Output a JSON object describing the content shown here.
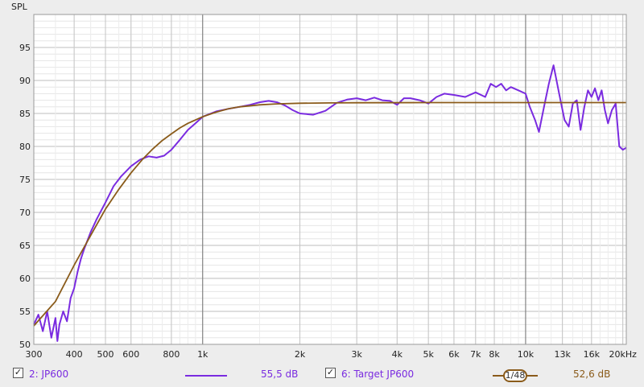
{
  "chart_data": {
    "type": "line",
    "ylabel": "SPL",
    "xscale": "log",
    "xlim": [
      300,
      20500
    ],
    "ylim": [
      50,
      100
    ],
    "yticks": [
      50,
      55,
      60,
      65,
      70,
      75,
      80,
      85,
      90,
      95
    ],
    "xticks": [
      {
        "v": 300,
        "label": "300"
      },
      {
        "v": 400,
        "label": "400"
      },
      {
        "v": 500,
        "label": "500"
      },
      {
        "v": 600,
        "label": "600"
      },
      {
        "v": 800,
        "label": "800"
      },
      {
        "v": 1000,
        "label": "1k"
      },
      {
        "v": 2000,
        "label": "2k"
      },
      {
        "v": 3000,
        "label": "3k"
      },
      {
        "v": 4000,
        "label": "4k"
      },
      {
        "v": 5000,
        "label": "5k"
      },
      {
        "v": 6000,
        "label": "6k"
      },
      {
        "v": 7000,
        "label": "7k"
      },
      {
        "v": 8000,
        "label": "8k"
      },
      {
        "v": 10000,
        "label": "10k"
      },
      {
        "v": 13000,
        "label": "13k"
      },
      {
        "v": 16000,
        "label": "16k"
      },
      {
        "v": 20000,
        "label": "20kHz"
      }
    ],
    "grid": true,
    "series": [
      {
        "name": "2: JP600",
        "color": "#7a2be0",
        "points": [
          [
            300,
            53
          ],
          [
            310,
            54.5
          ],
          [
            320,
            52
          ],
          [
            330,
            55
          ],
          [
            340,
            51
          ],
          [
            350,
            54
          ],
          [
            355,
            50.5
          ],
          [
            360,
            53
          ],
          [
            370,
            55
          ],
          [
            380,
            53.5
          ],
          [
            390,
            57
          ],
          [
            400,
            58.5
          ],
          [
            410,
            61
          ],
          [
            420,
            63
          ],
          [
            430,
            64.5
          ],
          [
            450,
            67
          ],
          [
            470,
            69
          ],
          [
            500,
            71.5
          ],
          [
            530,
            74
          ],
          [
            560,
            75.5
          ],
          [
            600,
            77
          ],
          [
            640,
            78
          ],
          [
            680,
            78.5
          ],
          [
            720,
            78.3
          ],
          [
            760,
            78.6
          ],
          [
            800,
            79.5
          ],
          [
            850,
            81
          ],
          [
            900,
            82.5
          ],
          [
            950,
            83.5
          ],
          [
            1000,
            84.5
          ],
          [
            1100,
            85.3
          ],
          [
            1200,
            85.7
          ],
          [
            1300,
            86
          ],
          [
            1400,
            86.3
          ],
          [
            1500,
            86.7
          ],
          [
            1600,
            86.9
          ],
          [
            1700,
            86.7
          ],
          [
            1800,
            86.2
          ],
          [
            1900,
            85.5
          ],
          [
            2000,
            85
          ],
          [
            2200,
            84.8
          ],
          [
            2400,
            85.4
          ],
          [
            2600,
            86.6
          ],
          [
            2800,
            87.1
          ],
          [
            3000,
            87.3
          ],
          [
            3200,
            87
          ],
          [
            3400,
            87.4
          ],
          [
            3600,
            87
          ],
          [
            3800,
            86.9
          ],
          [
            4000,
            86.3
          ],
          [
            4200,
            87.3
          ],
          [
            4400,
            87.3
          ],
          [
            4700,
            87
          ],
          [
            5000,
            86.5
          ],
          [
            5300,
            87.5
          ],
          [
            5600,
            88
          ],
          [
            6000,
            87.8
          ],
          [
            6500,
            87.5
          ],
          [
            7000,
            88.2
          ],
          [
            7500,
            87.5
          ],
          [
            7800,
            89.5
          ],
          [
            8100,
            89
          ],
          [
            8400,
            89.5
          ],
          [
            8700,
            88.5
          ],
          [
            9000,
            89
          ],
          [
            9500,
            88.5
          ],
          [
            10000,
            88
          ],
          [
            10300,
            86
          ],
          [
            10700,
            84
          ],
          [
            11000,
            82.2
          ],
          [
            11400,
            86
          ],
          [
            11800,
            89.5
          ],
          [
            12200,
            92.3
          ],
          [
            12700,
            88
          ],
          [
            13200,
            84
          ],
          [
            13600,
            83
          ],
          [
            14000,
            86.5
          ],
          [
            14400,
            87
          ],
          [
            14800,
            82.5
          ],
          [
            15200,
            86
          ],
          [
            15600,
            88.5
          ],
          [
            16000,
            87.5
          ],
          [
            16400,
            88.8
          ],
          [
            16800,
            87
          ],
          [
            17200,
            88.5
          ],
          [
            17600,
            85.5
          ],
          [
            18000,
            83.5
          ],
          [
            18500,
            85.5
          ],
          [
            19000,
            86.5
          ],
          [
            19500,
            80
          ],
          [
            20000,
            79.5
          ],
          [
            20500,
            79.8
          ]
        ]
      },
      {
        "name": "6: Target JP600",
        "color": "#8a5b1a",
        "points": [
          [
            300,
            52.8
          ],
          [
            350,
            56.5
          ],
          [
            400,
            62
          ],
          [
            450,
            66.5
          ],
          [
            500,
            70.5
          ],
          [
            550,
            73.5
          ],
          [
            600,
            76
          ],
          [
            650,
            78
          ],
          [
            700,
            79.6
          ],
          [
            750,
            80.9
          ],
          [
            800,
            81.9
          ],
          [
            850,
            82.8
          ],
          [
            900,
            83.5
          ],
          [
            1000,
            84.5
          ],
          [
            1100,
            85.2
          ],
          [
            1200,
            85.7
          ],
          [
            1300,
            86
          ],
          [
            1500,
            86.3
          ],
          [
            1700,
            86.45
          ],
          [
            2000,
            86.55
          ],
          [
            2500,
            86.6
          ],
          [
            3000,
            86.62
          ],
          [
            5000,
            86.65
          ],
          [
            10000,
            86.65
          ],
          [
            20500,
            86.65
          ]
        ]
      }
    ]
  },
  "legend": {
    "series1_label": "2: JP600",
    "series1_check": "✓",
    "series1_value": "55,5 dB",
    "series2_label": "6: Target JP600",
    "series2_check": "✓",
    "series2_value": "52,6 dB",
    "smoothing_label": "1/48"
  }
}
